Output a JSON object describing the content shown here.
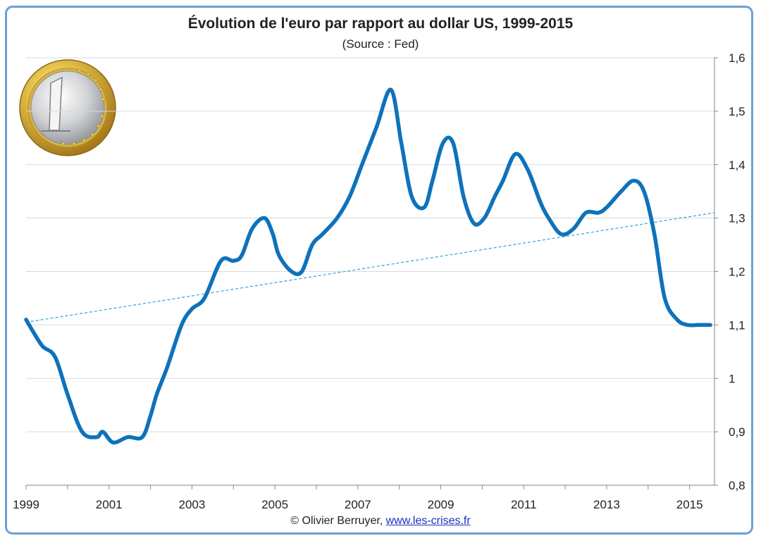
{
  "title": "Évolution de l'euro par rapport au dollar US, 1999-2015",
  "subtitle": "(Source : Fed)",
  "footer": {
    "copyright": "© Olivier Berruyer, ",
    "link": "www.les-crises.fr"
  },
  "colors": {
    "line": "#0e72bb",
    "trend": "#2ba3d9",
    "frame": "#6f9fd6",
    "grid": "#d9d9d9"
  },
  "coin_icon": "euro-coin-icon",
  "chart_data": {
    "type": "line",
    "title": "Évolution de l'euro par rapport au dollar US, 1999-2015",
    "subtitle": "(Source : Fed)",
    "xlabel": "",
    "ylabel": "",
    "xlim": [
      1999,
      2015.6
    ],
    "ylim": [
      0.8,
      1.6
    ],
    "x_ticks": [
      1999,
      2001,
      2003,
      2005,
      2007,
      2009,
      2011,
      2013,
      2015
    ],
    "x_tick_labels": [
      "1999",
      "2001",
      "2003",
      "2005",
      "2007",
      "2009",
      "2011",
      "2013",
      "2015"
    ],
    "y_ticks": [
      0.8,
      0.9,
      1,
      1.1,
      1.2,
      1.3,
      1.4,
      1.5,
      1.6
    ],
    "y_tick_labels": [
      "0,8",
      "0,9",
      "1",
      "1,1",
      "1,2",
      "1,3",
      "1,4",
      "1,5",
      "1,6"
    ],
    "y_axis_position": "right",
    "grid": true,
    "series": [
      {
        "x": [
          1999.0,
          1999.15,
          1999.4,
          1999.7,
          2000.0,
          2000.35,
          2000.7,
          2000.85,
          2001.1,
          2001.45,
          2001.8,
          2002.0,
          2002.15,
          2002.4,
          2002.75,
          2003.0,
          2003.3,
          2003.7,
          2004.0,
          2004.2,
          2004.45,
          2004.75,
          2004.95,
          2005.1,
          2005.4,
          2005.65,
          2005.9,
          2006.15,
          2006.5,
          2006.8,
          2007.1,
          2007.45,
          2007.8,
          2008.05,
          2008.3,
          2008.6,
          2008.8,
          2009.05,
          2009.3,
          2009.55,
          2009.8,
          2010.05,
          2010.3,
          2010.5,
          2010.8,
          2011.1,
          2011.4,
          2011.6,
          2011.9,
          2012.2,
          2012.5,
          2012.8,
          2013.0,
          2013.35,
          2013.65,
          2013.9,
          2014.15,
          2014.4,
          2014.7,
          2014.95,
          2015.2,
          2015.5
        ],
        "y": [
          1.11,
          1.09,
          1.06,
          1.04,
          0.97,
          0.9,
          0.89,
          0.9,
          0.88,
          0.89,
          0.89,
          0.93,
          0.97,
          1.02,
          1.1,
          1.13,
          1.15,
          1.22,
          1.22,
          1.23,
          1.28,
          1.3,
          1.27,
          1.23,
          1.2,
          1.2,
          1.25,
          1.27,
          1.3,
          1.34,
          1.4,
          1.47,
          1.54,
          1.44,
          1.34,
          1.32,
          1.37,
          1.44,
          1.44,
          1.34,
          1.29,
          1.3,
          1.34,
          1.37,
          1.42,
          1.39,
          1.33,
          1.3,
          1.27,
          1.28,
          1.31,
          1.31,
          1.32,
          1.35,
          1.37,
          1.35,
          1.27,
          1.15,
          1.11,
          1.1,
          1.1,
          1.1
        ]
      },
      {
        "style": "dashed",
        "x": [
          1999.0,
          2015.6
        ],
        "y": [
          1.105,
          1.31
        ]
      }
    ]
  }
}
